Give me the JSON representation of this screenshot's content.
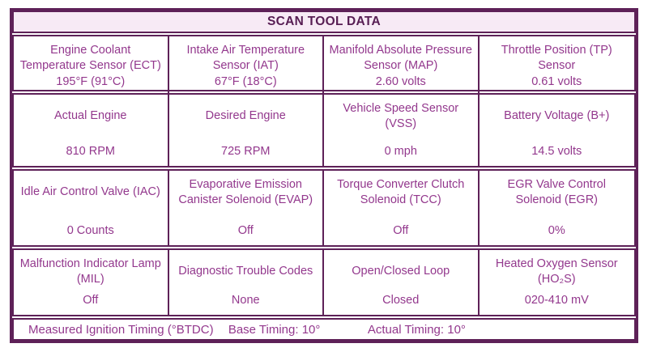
{
  "title": "SCAN TOOL DATA",
  "colors": {
    "border": "#5e2158",
    "header_background": "#f7eaf5",
    "header_text": "#571d53",
    "cell_text": "#93388d",
    "page_background": "#ffffff"
  },
  "table": {
    "rows": [
      {
        "cells": [
          {
            "label": "Engine Coolant Temperature Sensor (ECT)",
            "value": "195°F (91°C)"
          },
          {
            "label": "Intake Air Temperature Sensor (IAT)",
            "value": "67°F (18°C)"
          },
          {
            "label": "Manifold Absolute Pressure Sensor (MAP)",
            "value": "2.60 volts"
          },
          {
            "label": "Throttle Position (TP) Sensor",
            "value": "0.61 volts"
          }
        ]
      },
      {
        "cells": [
          {
            "label": "Actual Engine",
            "value": "810 RPM"
          },
          {
            "label": "Desired Engine",
            "value": "725 RPM"
          },
          {
            "label": "Vehicle Speed Sensor (VSS)",
            "value": "0 mph"
          },
          {
            "label": "Battery Voltage (B+)",
            "value": "14.5 volts"
          }
        ]
      },
      {
        "cells": [
          {
            "label": "Idle Air Control Valve (IAC)",
            "value": "0 Counts"
          },
          {
            "label": "Evaporative Emission Canister Solenoid (EVAP)",
            "value": "Off"
          },
          {
            "label": "Torque Converter Clutch Solenoid (TCC)",
            "value": "Off"
          },
          {
            "label": "EGR Valve Control Solenoid (EGR)",
            "value": "0%"
          }
        ]
      },
      {
        "cells": [
          {
            "label": "Malfunction Indicator Lamp (MIL)",
            "value": "Off"
          },
          {
            "label": "Diagnostic Trouble Codes",
            "value": "None"
          },
          {
            "label": "Open/Closed Loop",
            "value": "Closed"
          },
          {
            "label": "Heated Oxygen Sensor (HO₂S)",
            "value": "020-410 mV"
          }
        ]
      }
    ]
  },
  "footer": {
    "label": "Measured Ignition Timing (°BTDC)",
    "base_timing": "Base Timing: 10°",
    "actual_timing": "Actual Timing: 10°"
  }
}
